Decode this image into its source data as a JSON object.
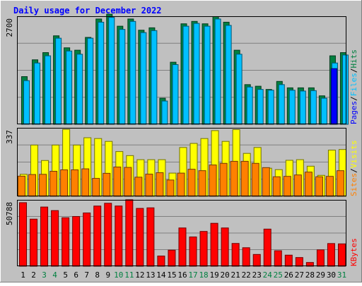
{
  "chart_data": [
    {
      "type": "bar",
      "title": "Daily usage for December 2022",
      "categories": [
        "1",
        "2",
        "3",
        "4",
        "5",
        "6",
        "7",
        "8",
        "9",
        "10",
        "11",
        "12",
        "13",
        "14",
        "15",
        "16",
        "17",
        "18",
        "19",
        "20",
        "21",
        "22",
        "23",
        "24",
        "25",
        "26",
        "27",
        "28",
        "29",
        "30",
        "31"
      ],
      "weekend_days": [
        "3",
        "4",
        "10",
        "11",
        "17",
        "18",
        "24",
        "25",
        "31"
      ],
      "ylim": [
        0,
        2700
      ],
      "ytick_label": "2700",
      "legend": [
        "Pages",
        "Files",
        "Hits"
      ],
      "legend_separator": "/",
      "series": [
        {
          "name": "Hits",
          "color": "#008040",
          "values": [
            1200,
            1620,
            1800,
            2220,
            1920,
            1860,
            2180,
            2640,
            2760,
            2460,
            2640,
            2360,
            2420,
            660,
            1560,
            2520,
            2580,
            2520,
            2700,
            2560,
            1860,
            1000,
            960,
            880,
            1080,
            920,
            920,
            920,
            720,
            1720,
            1800
          ]
        },
        {
          "name": "Files",
          "color": "#00c0ff",
          "values": [
            1100,
            1540,
            1720,
            2160,
            1840,
            1760,
            2160,
            2560,
            2680,
            2380,
            2580,
            2300,
            2350,
            590,
            1500,
            2460,
            2530,
            2460,
            2640,
            2480,
            1760,
            940,
            880,
            860,
            1000,
            860,
            840,
            850,
            660,
            1540,
            1740
          ]
        },
        {
          "name": "Pages",
          "color": "#0000ff",
          "values": [
            0,
            0,
            0,
            0,
            0,
            0,
            0,
            0,
            0,
            0,
            0,
            0,
            0,
            0,
            0,
            0,
            0,
            0,
            0,
            0,
            0,
            0,
            0,
            0,
            0,
            0,
            0,
            0,
            0,
            1400,
            0
          ]
        }
      ]
    },
    {
      "type": "bar",
      "categories": [
        "1",
        "2",
        "3",
        "4",
        "5",
        "6",
        "7",
        "8",
        "9",
        "10",
        "11",
        "12",
        "13",
        "14",
        "15",
        "16",
        "17",
        "18",
        "19",
        "20",
        "21",
        "22",
        "23",
        "24",
        "25",
        "26",
        "27",
        "28",
        "29",
        "30",
        "31"
      ],
      "ylim": [
        0,
        337
      ],
      "ytick_label": "337",
      "legend": [
        "Sites",
        "Visits"
      ],
      "legend_separator": "/",
      "series": [
        {
          "name": "Visits",
          "color": "#ffff00",
          "values": [
            110,
            254,
            178,
            254,
            331,
            254,
            290,
            286,
            272,
            222,
            202,
            182,
            182,
            182,
            116,
            242,
            262,
            286,
            325,
            272,
            330,
            213,
            242,
            140,
            133,
            179,
            182,
            150,
            105,
            229,
            232
          ]
        },
        {
          "name": "Sites",
          "color": "#ff8000",
          "values": [
            101,
            109,
            110,
            125,
            132,
            132,
            137,
            90,
            115,
            146,
            144,
            96,
            111,
            118,
            82,
            116,
            135,
            128,
            156,
            164,
            174,
            174,
            164,
            143,
            98,
            100,
            107,
            121,
            98,
            100,
            128
          ]
        }
      ]
    },
    {
      "type": "bar",
      "categories": [
        "1",
        "2",
        "3",
        "4",
        "5",
        "6",
        "7",
        "8",
        "9",
        "10",
        "11",
        "12",
        "13",
        "14",
        "15",
        "16",
        "17",
        "18",
        "19",
        "20",
        "21",
        "22",
        "23",
        "24",
        "25",
        "26",
        "27",
        "28",
        "29",
        "30",
        "31"
      ],
      "ylim": [
        0,
        50788
      ],
      "ytick_label": "50788",
      "legend": [
        "KBytes"
      ],
      "series": [
        {
          "name": "KBytes",
          "color": "#ff0000",
          "values": [
            48920,
            36310,
            45580,
            42850,
            37390,
            38320,
            41040,
            46330,
            48450,
            46370,
            51160,
            44530,
            44960,
            8090,
            12580,
            29570,
            22680,
            26910,
            33120,
            29570,
            17710,
            14440,
            9290,
            28690,
            12120,
            8770,
            6930,
            3150,
            12810,
            17640,
            17390
          ]
        }
      ]
    }
  ]
}
